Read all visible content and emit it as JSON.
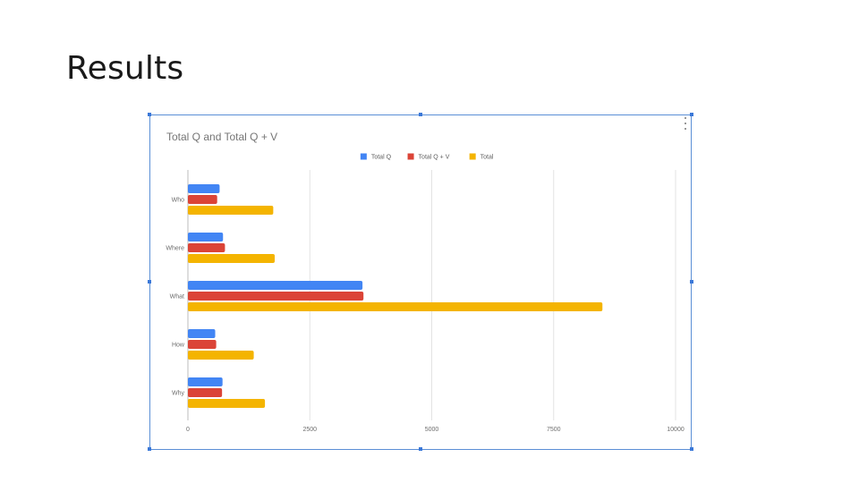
{
  "slide": {
    "title": "Results"
  },
  "chart_data": {
    "type": "bar",
    "orientation": "horizontal",
    "title": "Total Q and Total Q + V",
    "categories": [
      "Who",
      "Where",
      "What",
      "How",
      "Why"
    ],
    "series": [
      {
        "name": "Total Q",
        "color": "#4285f4",
        "values": [
          650,
          720,
          3580,
          560,
          710
        ]
      },
      {
        "name": "Total Q + V",
        "color": "#db4437",
        "values": [
          600,
          760,
          3600,
          580,
          700
        ]
      },
      {
        "name": "Total",
        "color": "#f4b400",
        "values": [
          1750,
          1780,
          8500,
          1350,
          1580
        ]
      }
    ],
    "xlim": [
      0,
      10000
    ],
    "xticks": [
      0,
      2500,
      5000,
      7500,
      10000
    ],
    "xtick_labels": [
      "0",
      "2500",
      "5000",
      "7500",
      "10000"
    ],
    "legend_position": "top",
    "grid": true
  }
}
